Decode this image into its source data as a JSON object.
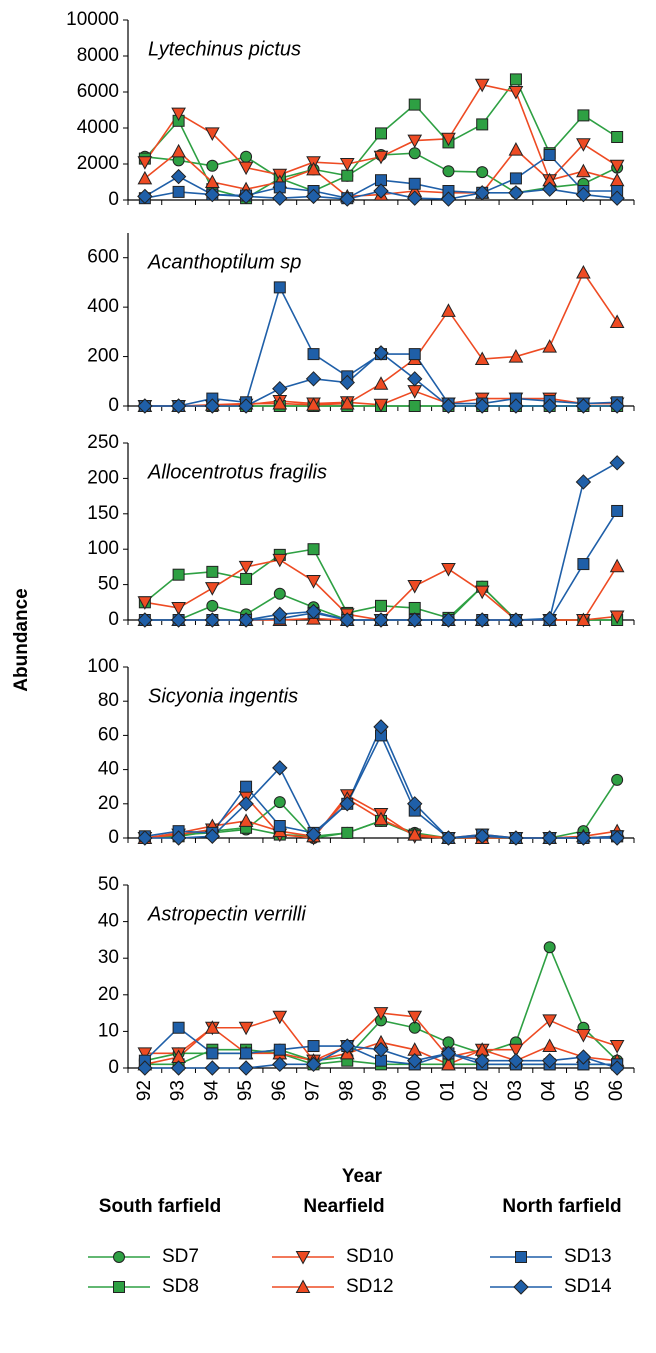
{
  "chart_data": [
    {
      "type": "line",
      "title": "Lytechinus pictus",
      "categories": [
        "92",
        "93",
        "94",
        "95",
        "96",
        "97",
        "98",
        "99",
        "00",
        "01",
        "02",
        "03",
        "04",
        "05",
        "06"
      ],
      "ylim": [
        0,
        10000
      ],
      "yticks": [
        0,
        2000,
        4000,
        6000,
        8000,
        10000
      ],
      "series": [
        {
          "name": "SD7",
          "color": "#2ea043",
          "marker": "circle",
          "values": [
            2400,
            2200,
            1900,
            2400,
            1200,
            1700,
            1350,
            2500,
            2600,
            1600,
            1550,
            400,
            700,
            900,
            1800
          ]
        },
        {
          "name": "SD8",
          "color": "#2ea043",
          "marker": "square",
          "values": [
            2300,
            4400,
            600,
            100,
            1200,
            500,
            1350,
            3700,
            5300,
            3200,
            4200,
            6700,
            2600,
            4700,
            3500
          ]
        },
        {
          "name": "SD10",
          "color": "#ee4b23",
          "marker": "triangle-down",
          "values": [
            2100,
            4800,
            3700,
            1800,
            1400,
            2100,
            2000,
            2400,
            3300,
            3400,
            6400,
            6000,
            1100,
            3100,
            1900
          ]
        },
        {
          "name": "SD12",
          "color": "#ee4b23",
          "marker": "triangle-up",
          "values": [
            1200,
            2700,
            1000,
            600,
            1000,
            1700,
            200,
            300,
            500,
            400,
            400,
            2800,
            1100,
            1600,
            1100
          ]
        },
        {
          "name": "SD13",
          "color": "#1f5fa8",
          "marker": "square",
          "values": [
            100,
            450,
            300,
            250,
            700,
            500,
            100,
            1100,
            900,
            500,
            400,
            1200,
            2500,
            500,
            500
          ]
        },
        {
          "name": "SD14",
          "color": "#1f5fa8",
          "marker": "diamond",
          "values": [
            200,
            1300,
            300,
            200,
            100,
            200,
            50,
            500,
            100,
            50,
            400,
            400,
            600,
            300,
            100
          ]
        }
      ]
    },
    {
      "type": "line",
      "title": "Acanthoptilum sp",
      "categories": [
        "92",
        "93",
        "94",
        "95",
        "96",
        "97",
        "98",
        "99",
        "00",
        "01",
        "02",
        "03",
        "04",
        "05",
        "06"
      ],
      "ylim": [
        0,
        700
      ],
      "yticks": [
        0,
        200,
        400,
        600
      ],
      "series": [
        {
          "name": "SD7",
          "color": "#2ea043",
          "marker": "circle",
          "values": [
            0,
            0,
            0,
            0,
            0,
            0,
            0,
            0,
            0,
            0,
            0,
            0,
            0,
            0,
            0
          ]
        },
        {
          "name": "SD8",
          "color": "#2ea043",
          "marker": "square",
          "values": [
            0,
            0,
            0,
            0,
            0,
            0,
            0,
            0,
            0,
            0,
            0,
            0,
            0,
            0,
            0
          ]
        },
        {
          "name": "SD10",
          "color": "#ee4b23",
          "marker": "triangle-down",
          "values": [
            0,
            0,
            0,
            5,
            20,
            10,
            15,
            5,
            60,
            10,
            30,
            30,
            30,
            10,
            10
          ]
        },
        {
          "name": "SD12",
          "color": "#ee4b23",
          "marker": "triangle-up",
          "values": [
            0,
            0,
            5,
            10,
            10,
            5,
            10,
            90,
            190,
            385,
            190,
            200,
            240,
            540,
            340
          ]
        },
        {
          "name": "SD13",
          "color": "#1f5fa8",
          "marker": "square",
          "values": [
            0,
            0,
            30,
            15,
            480,
            210,
            120,
            210,
            210,
            10,
            10,
            30,
            20,
            10,
            15
          ]
        },
        {
          "name": "SD14",
          "color": "#1f5fa8",
          "marker": "diamond",
          "values": [
            0,
            0,
            0,
            0,
            70,
            110,
            95,
            215,
            110,
            0,
            0,
            0,
            0,
            0,
            0
          ]
        }
      ]
    },
    {
      "type": "line",
      "title": "Allocentrotus fragilis",
      "categories": [
        "92",
        "93",
        "94",
        "95",
        "96",
        "97",
        "98",
        "99",
        "00",
        "01",
        "02",
        "03",
        "04",
        "05",
        "06"
      ],
      "ylim": [
        0,
        250
      ],
      "yticks": [
        0,
        50,
        100,
        150,
        200,
        250
      ],
      "series": [
        {
          "name": "SD7",
          "color": "#2ea043",
          "marker": "circle",
          "values": [
            0,
            0,
            20,
            8,
            37,
            18,
            0,
            0,
            0,
            0,
            47,
            0,
            0,
            0,
            0
          ]
        },
        {
          "name": "SD8",
          "color": "#2ea043",
          "marker": "square",
          "values": [
            25,
            64,
            68,
            58,
            92,
            100,
            10,
            20,
            17,
            3,
            47,
            0,
            0,
            0,
            0
          ]
        },
        {
          "name": "SD10",
          "color": "#ee4b23",
          "marker": "triangle-down",
          "values": [
            25,
            17,
            45,
            75,
            85,
            55,
            8,
            0,
            48,
            72,
            40,
            0,
            0,
            0,
            5
          ]
        },
        {
          "name": "SD12",
          "color": "#ee4b23",
          "marker": "triangle-up",
          "values": [
            0,
            0,
            0,
            0,
            0,
            2,
            0,
            0,
            0,
            0,
            0,
            0,
            0,
            0,
            76
          ]
        },
        {
          "name": "SD13",
          "color": "#1f5fa8",
          "marker": "square",
          "values": [
            0,
            0,
            0,
            0,
            2,
            10,
            0,
            0,
            0,
            0,
            0,
            0,
            0,
            79,
            154
          ]
        },
        {
          "name": "SD14",
          "color": "#1f5fa8",
          "marker": "diamond",
          "values": [
            0,
            0,
            0,
            0,
            8,
            12,
            0,
            0,
            0,
            0,
            0,
            0,
            2,
            195,
            222
          ]
        }
      ]
    },
    {
      "type": "line",
      "title": "Sicyonia ingentis",
      "categories": [
        "92",
        "93",
        "94",
        "95",
        "96",
        "97",
        "98",
        "99",
        "00",
        "01",
        "02",
        "03",
        "04",
        "05",
        "06"
      ],
      "ylim": [
        0,
        100
      ],
      "yticks": [
        0,
        20,
        40,
        60,
        80,
        100
      ],
      "series": [
        {
          "name": "SD7",
          "color": "#2ea043",
          "marker": "circle",
          "values": [
            0,
            2,
            3,
            5,
            21,
            0,
            3,
            10,
            3,
            0,
            0,
            0,
            0,
            4,
            34
          ]
        },
        {
          "name": "SD8",
          "color": "#2ea043",
          "marker": "square",
          "values": [
            0,
            1,
            4,
            6,
            2,
            1,
            3,
            10,
            2,
            0,
            0,
            0,
            0,
            0,
            1
          ]
        },
        {
          "name": "SD10",
          "color": "#ee4b23",
          "marker": "triangle-down",
          "values": [
            0,
            2,
            5,
            24,
            2,
            0,
            25,
            14,
            1,
            0,
            2,
            0,
            0,
            0,
            1
          ]
        },
        {
          "name": "SD12",
          "color": "#ee4b23",
          "marker": "triangle-up",
          "values": [
            0,
            3,
            7,
            10,
            4,
            1,
            23,
            11,
            2,
            0,
            0,
            0,
            0,
            1,
            4
          ]
        },
        {
          "name": "SD13",
          "color": "#1f5fa8",
          "marker": "square",
          "values": [
            1,
            4,
            3,
            30,
            7,
            3,
            20,
            60,
            16,
            0,
            2,
            0,
            0,
            0,
            1
          ]
        },
        {
          "name": "SD14",
          "color": "#1f5fa8",
          "marker": "diamond",
          "values": [
            0,
            0,
            1,
            20,
            41,
            2,
            20,
            65,
            20,
            0,
            1,
            0,
            0,
            0,
            0
          ]
        }
      ]
    },
    {
      "type": "line",
      "title": "Astropectin verrilli",
      "categories": [
        "92",
        "93",
        "94",
        "95",
        "96",
        "97",
        "98",
        "99",
        "00",
        "01",
        "02",
        "03",
        "04",
        "05",
        "06"
      ],
      "ylim": [
        0,
        50
      ],
      "yticks": [
        0,
        10,
        20,
        30,
        40,
        50
      ],
      "series": [
        {
          "name": "SD7",
          "color": "#2ea043",
          "marker": "circle",
          "values": [
            2,
            4,
            4,
            4,
            5,
            2,
            3,
            13,
            11,
            7,
            4,
            7,
            33,
            11,
            2
          ]
        },
        {
          "name": "SD8",
          "color": "#2ea043",
          "marker": "square",
          "values": [
            1,
            1,
            5,
            5,
            4,
            1,
            2,
            1,
            1,
            1,
            1,
            1,
            1,
            1,
            1
          ]
        },
        {
          "name": "SD10",
          "color": "#ee4b23",
          "marker": "triangle-down",
          "values": [
            4,
            4,
            11,
            11,
            14,
            2,
            6,
            15,
            14,
            3,
            5,
            5,
            13,
            9,
            6
          ]
        },
        {
          "name": "SD12",
          "color": "#ee4b23",
          "marker": "triangle-up",
          "values": [
            1,
            3,
            11,
            4,
            4,
            2,
            4,
            7,
            5,
            1,
            5,
            2,
            6,
            3,
            2
          ]
        },
        {
          "name": "SD13",
          "color": "#1f5fa8",
          "marker": "square",
          "values": [
            2,
            11,
            4,
            4,
            5,
            6,
            6,
            2,
            1,
            4,
            1,
            1,
            1,
            1,
            1
          ]
        },
        {
          "name": "SD14",
          "color": "#1f5fa8",
          "marker": "diamond",
          "values": [
            0,
            0,
            0,
            0,
            1,
            1,
            6,
            5,
            2,
            4,
            2,
            2,
            2,
            3,
            0
          ]
        }
      ]
    }
  ],
  "ylabel": "Abundance",
  "xlabel": "Year",
  "legend_groups": [
    "South farfield",
    "Nearfield",
    "North farfield"
  ]
}
